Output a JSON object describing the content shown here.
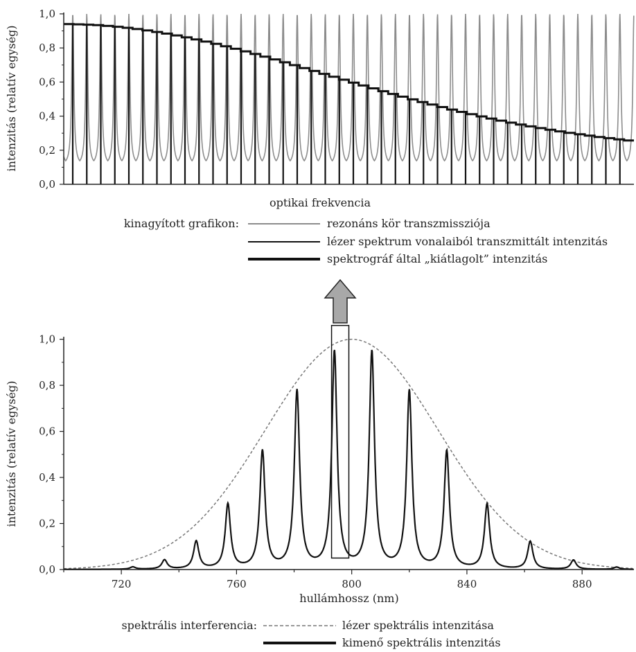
{
  "chart_data": [
    {
      "type": "line",
      "ylabel": "intenzitás (relatív egység)",
      "xlabel": "optikai frekvencia",
      "ylim": [
        0,
        1.0
      ],
      "yticks": [
        "0,0",
        "0,2",
        "0,4",
        "0,6",
        "0,8",
        "1,0"
      ],
      "legend_title": "kinagyított grafikon:",
      "series": [
        {
          "name": "rezonáns kör transzmissziója",
          "color": "#8c8c8c",
          "style": "periodic-resonance",
          "peak": 1.0,
          "baseline": 0.11,
          "periods": 40
        },
        {
          "name": "lézer spektrum vonalaiból transzmittált intenzitás",
          "color": "#111111",
          "style": "comb-lines",
          "lines": 40
        },
        {
          "name": "spektrográf által „kiátlagolt” intenzitás",
          "color": "#111111",
          "style": "staircase",
          "start": 0.94,
          "end": 0.18
        }
      ]
    },
    {
      "type": "line",
      "ylabel": "intenzitás (relatív egység)",
      "xlabel": "hullámhossz (nm)",
      "xlim": [
        700,
        900
      ],
      "ylim": [
        0,
        1.05
      ],
      "xticks": [
        720,
        760,
        800,
        840,
        880
      ],
      "yticks": [
        "0,0",
        "0,2",
        "0,4",
        "0,6",
        "0,8",
        "1,0"
      ],
      "legend_title": "spektrális interferencia:",
      "series": [
        {
          "name": "lézer spektrális intenzitása",
          "color": "#777777",
          "style": "dashed",
          "center": 800,
          "sigma": 30,
          "peak": 1.0
        },
        {
          "name": "kimenő spektrális intenzitás",
          "color": "#111111",
          "style": "solid",
          "peaks": [
            {
              "x": 724,
              "y": 0.01
            },
            {
              "x": 735,
              "y": 0.04
            },
            {
              "x": 746,
              "y": 0.12
            },
            {
              "x": 757,
              "y": 0.28
            },
            {
              "x": 769,
              "y": 0.51
            },
            {
              "x": 781,
              "y": 0.77
            },
            {
              "x": 794,
              "y": 0.94
            },
            {
              "x": 807,
              "y": 0.94
            },
            {
              "x": 820,
              "y": 0.77
            },
            {
              "x": 833,
              "y": 0.51
            },
            {
              "x": 847,
              "y": 0.28
            },
            {
              "x": 862,
              "y": 0.12
            },
            {
              "x": 877,
              "y": 0.04
            },
            {
              "x": 892,
              "y": 0.01
            }
          ]
        }
      ],
      "highlight_box": {
        "x0": 793,
        "x1": 799,
        "y0": 0.05,
        "y1": 1.06
      }
    }
  ]
}
